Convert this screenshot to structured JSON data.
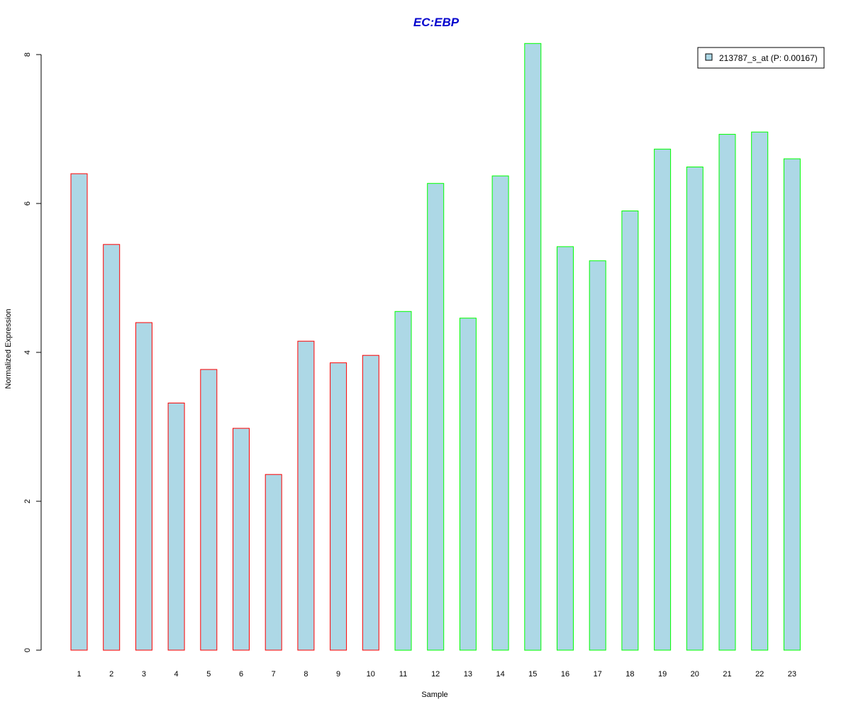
{
  "colors": {
    "bar_fill": "#add8e6",
    "group1_border": "#ff0000",
    "group2_border": "#00ff00",
    "title": "#0000cd",
    "axis": "#000000"
  },
  "chart_data": {
    "type": "bar",
    "title": "EC:EBP",
    "xlabel": "Sample",
    "ylabel": "Normalized Expression",
    "ylim": [
      0,
      8.2
    ],
    "yticks": [
      0,
      2,
      4,
      6,
      8
    ],
    "ytick_labels": [
      "0",
      "2",
      "4",
      "6",
      "8"
    ],
    "categories": [
      "1",
      "2",
      "3",
      "4",
      "5",
      "6",
      "7",
      "8",
      "9",
      "10",
      "11",
      "12",
      "13",
      "14",
      "15",
      "16",
      "17",
      "18",
      "19",
      "20",
      "21",
      "22",
      "23"
    ],
    "series": [
      {
        "name": "213787_s_at (P: 0.00167)",
        "values": [
          6.4,
          5.45,
          4.4,
          3.32,
          3.77,
          2.98,
          2.36,
          4.15,
          3.86,
          3.96,
          4.55,
          6.27,
          4.46,
          6.37,
          8.15,
          5.42,
          5.23,
          5.9,
          6.73,
          6.49,
          6.93,
          6.96,
          6.6
        ],
        "groups": [
          1,
          1,
          1,
          1,
          1,
          1,
          1,
          1,
          1,
          1,
          2,
          2,
          2,
          2,
          2,
          2,
          2,
          2,
          2,
          2,
          2,
          2,
          2
        ]
      }
    ],
    "grid": false,
    "legend_position": "top-right"
  }
}
